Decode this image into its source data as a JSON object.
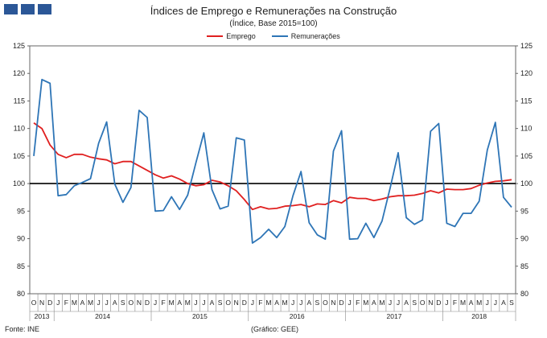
{
  "header": {
    "title": "Índices de Emprego e Remunerações na Construção",
    "subtitle": "(Índice, Base 2015=100)"
  },
  "footer": {
    "source": "Fonte: INE",
    "credit": "(Gráfico: GEE)"
  },
  "chart_data": {
    "type": "line",
    "ylim": [
      80,
      125
    ],
    "yticks": [
      80,
      85,
      90,
      95,
      100,
      105,
      110,
      115,
      120,
      125
    ],
    "reference_line": 100,
    "grid": false,
    "legend_position": "top-center",
    "x": [
      "O",
      "N",
      "D",
      "J",
      "F",
      "M",
      "A",
      "M",
      "J",
      "J",
      "A",
      "S",
      "O",
      "N",
      "D",
      "J",
      "F",
      "M",
      "A",
      "M",
      "J",
      "J",
      "A",
      "S",
      "O",
      "N",
      "D",
      "J",
      "F",
      "M",
      "A",
      "M",
      "J",
      "J",
      "A",
      "S",
      "O",
      "N",
      "D",
      "J",
      "F",
      "M",
      "A",
      "M",
      "J",
      "J",
      "A",
      "S",
      "O",
      "N",
      "D",
      "J",
      "F",
      "M",
      "A",
      "M",
      "J",
      "J",
      "A",
      "S"
    ],
    "years": [
      {
        "label": "2013",
        "start": 0,
        "count": 3
      },
      {
        "label": "2014",
        "start": 3,
        "count": 12
      },
      {
        "label": "2015",
        "start": 15,
        "count": 12
      },
      {
        "label": "2016",
        "start": 27,
        "count": 12
      },
      {
        "label": "2017",
        "start": 39,
        "count": 12
      },
      {
        "label": "2018",
        "start": 51,
        "count": 9
      }
    ],
    "series": [
      {
        "name": "Emprego",
        "color": "#e02020",
        "values": [
          111.0,
          110.0,
          107.0,
          105.3,
          104.7,
          105.3,
          105.3,
          104.8,
          104.5,
          104.3,
          103.6,
          104.0,
          104.0,
          103.2,
          102.4,
          101.6,
          101.0,
          101.4,
          100.8,
          100.0,
          99.6,
          99.8,
          100.6,
          100.3,
          99.6,
          98.7,
          97.1,
          95.3,
          95.8,
          95.4,
          95.5,
          95.9,
          96.0,
          96.2,
          95.8,
          96.3,
          96.2,
          96.9,
          96.5,
          97.5,
          97.3,
          97.3,
          96.9,
          97.2,
          97.6,
          97.8,
          97.8,
          97.9,
          98.2,
          98.7,
          98.3,
          99.0,
          98.9,
          98.9,
          99.1,
          99.7,
          100.1,
          100.4,
          100.5,
          100.7
        ]
      },
      {
        "name": "Remunerações",
        "color": "#2e75b6",
        "values": [
          105.0,
          118.9,
          118.2,
          97.8,
          98.0,
          99.6,
          100.2,
          100.9,
          107.3,
          111.2,
          99.9,
          96.6,
          99.3,
          113.3,
          112.0,
          95.0,
          95.1,
          97.6,
          95.3,
          97.9,
          103.7,
          109.2,
          98.9,
          95.4,
          95.9,
          108.3,
          107.9,
          89.2,
          90.2,
          91.7,
          90.2,
          92.2,
          97.8,
          102.2,
          92.9,
          90.7,
          89.9,
          105.9,
          109.6,
          89.9,
          90.0,
          92.8,
          90.2,
          93.2,
          99.2,
          105.6,
          93.8,
          92.6,
          93.4,
          109.5,
          110.9,
          92.8,
          92.2,
          94.6,
          94.6,
          96.8,
          106.1,
          111.1,
          97.5,
          95.7
        ]
      }
    ]
  }
}
